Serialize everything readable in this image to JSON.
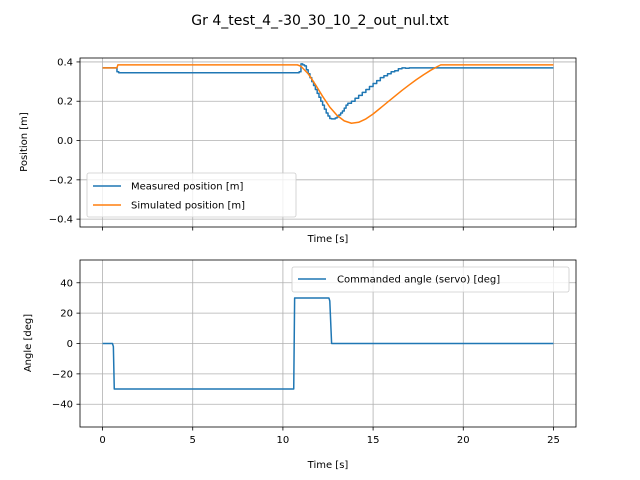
{
  "figure_title": "Gr 4_test_4_-30_30_10_2_out_nul.txt",
  "colors": {
    "series1": "#1f77b4",
    "series2": "#ff7f0e"
  },
  "chart_data": [
    {
      "type": "line",
      "xlabel": "Time [s]",
      "ylabel": "Position [m]",
      "xlim": [
        -1.25,
        26.25
      ],
      "ylim": [
        -0.44,
        0.42
      ],
      "xticks": [
        0,
        5,
        10,
        15,
        20,
        25
      ],
      "show_xticklabels": false,
      "yticks": [
        -0.4,
        -0.2,
        0.0,
        0.2,
        0.4
      ],
      "ytick_labels": [
        "−0.4",
        "−0.2",
        "0.0",
        "0.2",
        "0.4"
      ],
      "grid": true,
      "legend_loc": "lower left",
      "series": [
        {
          "name": "Measured position [m]",
          "color": "#1f77b4",
          "step": true,
          "x": [
            0,
            0.7,
            0.8,
            0.9,
            1.0,
            10.9,
            11.0,
            11.1,
            11.2,
            11.3,
            11.4,
            11.5,
            11.6,
            11.7,
            11.8,
            11.9,
            12.0,
            12.1,
            12.2,
            12.3,
            12.4,
            12.5,
            12.6,
            12.7,
            12.8,
            12.9,
            13.0,
            13.1,
            13.2,
            13.3,
            13.4,
            13.5,
            13.6,
            13.8,
            14.0,
            14.2,
            14.4,
            14.6,
            14.8,
            15.0,
            15.2,
            15.4,
            15.6,
            15.8,
            16.0,
            16.2,
            16.4,
            16.6,
            16.8,
            17.0,
            17.2,
            17.5,
            25
          ],
          "y": [
            0.37,
            0.37,
            0.35,
            0.345,
            0.345,
            0.35,
            0.39,
            0.385,
            0.38,
            0.36,
            0.34,
            0.32,
            0.3,
            0.28,
            0.26,
            0.24,
            0.22,
            0.2,
            0.18,
            0.16,
            0.14,
            0.125,
            0.112,
            0.11,
            0.11,
            0.115,
            0.12,
            0.13,
            0.14,
            0.15,
            0.165,
            0.18,
            0.19,
            0.2,
            0.215,
            0.23,
            0.245,
            0.26,
            0.275,
            0.29,
            0.305,
            0.32,
            0.33,
            0.34,
            0.35,
            0.355,
            0.365,
            0.37,
            0.368,
            0.37,
            0.37,
            0.37,
            0.37
          ]
        },
        {
          "name": "Simulated position [m]",
          "color": "#ff7f0e",
          "step": false,
          "x": [
            0,
            0.8,
            0.85,
            10.8,
            11.0,
            11.4,
            11.8,
            12.2,
            12.6,
            13.0,
            13.4,
            13.8,
            14.2,
            14.6,
            15.0,
            15.4,
            15.8,
            16.2,
            16.6,
            17.0,
            17.4,
            17.8,
            18.2,
            18.6,
            18.75,
            25
          ],
          "y": [
            0.37,
            0.37,
            0.385,
            0.385,
            0.378,
            0.34,
            0.285,
            0.225,
            0.17,
            0.128,
            0.1,
            0.088,
            0.093,
            0.11,
            0.135,
            0.165,
            0.195,
            0.225,
            0.255,
            0.283,
            0.31,
            0.335,
            0.358,
            0.378,
            0.385,
            0.385
          ]
        }
      ]
    },
    {
      "type": "line",
      "xlabel": "Time [s]",
      "ylabel": "Angle [deg]",
      "xlim": [
        -1.25,
        26.25
      ],
      "ylim": [
        -55,
        55
      ],
      "xticks": [
        0,
        5,
        10,
        15,
        20,
        25
      ],
      "show_xticklabels": true,
      "yticks": [
        -40,
        -20,
        0,
        20,
        40
      ],
      "ytick_labels": [
        "−40",
        "−20",
        "0",
        "20",
        "40"
      ],
      "grid": true,
      "legend_loc": "upper right",
      "series": [
        {
          "name": "Commanded angle (servo) [deg]",
          "color": "#1f77b4",
          "step": false,
          "x": [
            0,
            0.55,
            0.6,
            0.65,
            10.6,
            10.65,
            10.75,
            12.55,
            12.6,
            12.7,
            25
          ],
          "y": [
            0,
            0,
            -2,
            -30,
            -30,
            30,
            30,
            30,
            28,
            0,
            0
          ]
        }
      ]
    }
  ]
}
